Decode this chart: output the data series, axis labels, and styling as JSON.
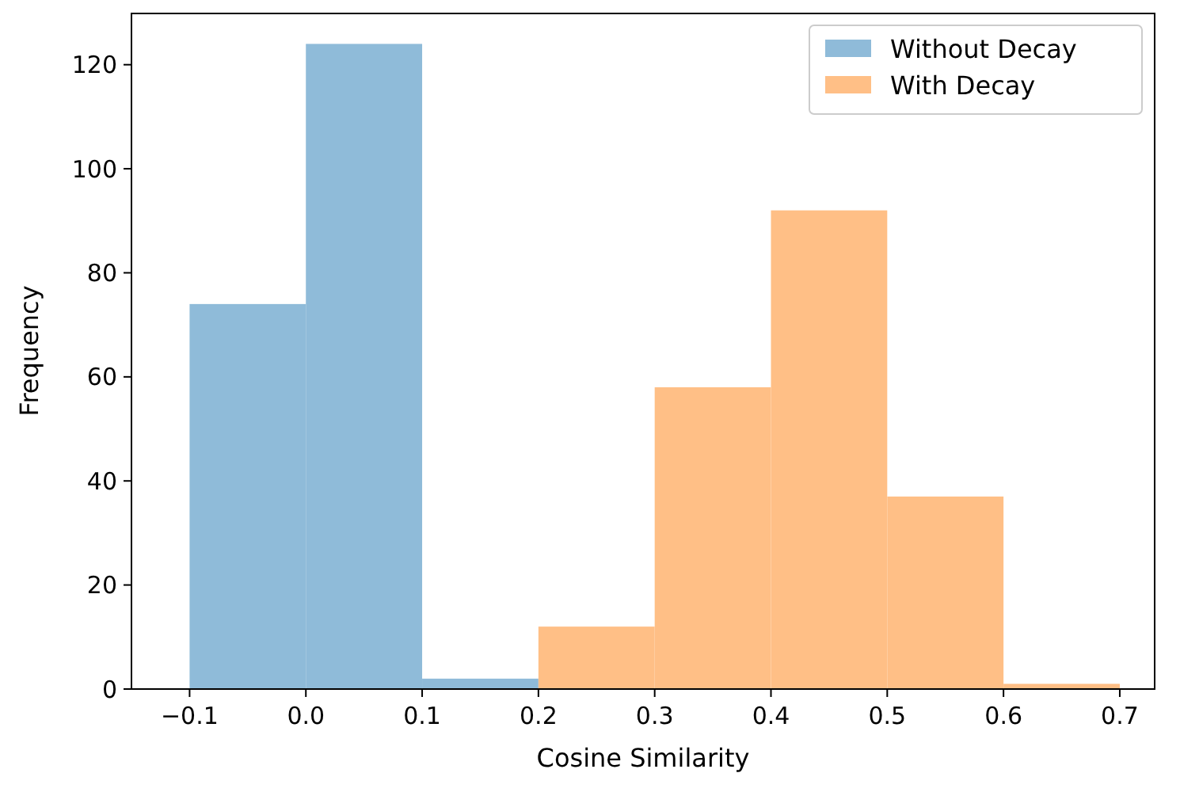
{
  "chart_data": {
    "type": "histogram",
    "xlabel": "Cosine Similarity",
    "ylabel": "Frequency",
    "xlim": [
      -0.15,
      0.73
    ],
    "xticks": [
      {
        "value": -0.1,
        "label": "−0.1"
      },
      {
        "value": 0,
        "label": "0.0"
      },
      {
        "value": 0.1,
        "label": "0.1"
      },
      {
        "value": 0.2,
        "label": "0.2"
      },
      {
        "value": 0.3,
        "label": "0.3"
      },
      {
        "value": 0.4,
        "label": "0.4"
      },
      {
        "value": 0.5,
        "label": "0.5"
      },
      {
        "value": 0.6,
        "label": "0.6"
      },
      {
        "value": 0.7,
        "label": "0.7"
      }
    ],
    "ylim": [
      0,
      130
    ],
    "yticks": [
      0,
      20,
      40,
      60,
      80,
      100,
      120
    ],
    "grid": false,
    "legend": "top right",
    "bins": [
      -0.1,
      0,
      0.1,
      0.2,
      0.3,
      0.4,
      0.5,
      0.6,
      0.7
    ],
    "series": [
      {
        "name": "Without Decay",
        "color": "#8fbbd9",
        "values": [
          74,
          124,
          2,
          null,
          null,
          null,
          null,
          null
        ]
      },
      {
        "name": "With Decay",
        "color": "#ffbf86",
        "values": [
          null,
          null,
          null,
          12,
          58,
          92,
          37,
          1
        ]
      }
    ]
  }
}
